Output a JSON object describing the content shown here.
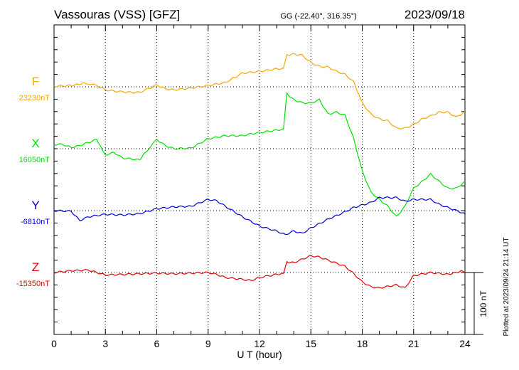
{
  "header": {
    "station": "Vassouras (VSS)  [GFZ]",
    "coords": "GG (-22.40°, 316.35°)",
    "date": "2023/09/18"
  },
  "footer": {
    "plotted": "Plotted at 2023/09/24 21:14 UT",
    "scale_label": "100 nT"
  },
  "chart_data": {
    "type": "line",
    "title": "Vassouras (VSS)  [GFZ]",
    "xlabel": "U T (hour)",
    "xlim": [
      0,
      24
    ],
    "xticks": [
      "0",
      "3",
      "6",
      "9",
      "12",
      "15",
      "18",
      "21",
      "24"
    ],
    "xtick_values": [
      0,
      3,
      6,
      9,
      12,
      15,
      18,
      21,
      24
    ],
    "scale_nT": 100,
    "grid": true,
    "series": [
      {
        "name": "F",
        "baseline_label": "23230nT",
        "color": "#f5a800",
        "x": [
          0,
          1,
          1.8,
          2.5,
          3,
          3.5,
          4.5,
          5,
          5.5,
          6,
          6.5,
          7,
          8,
          9,
          10,
          11,
          12,
          13,
          13.4,
          13.6,
          14,
          14.5,
          15,
          15.5,
          16,
          16.5,
          17,
          17.5,
          18,
          18.5,
          19,
          19.5,
          20,
          20.5,
          21,
          21.5,
          22,
          22.5,
          23,
          23.5,
          24
        ],
        "y": [
          1,
          2,
          6,
          2,
          -5,
          -7,
          -9,
          -9,
          -3,
          3,
          -3,
          -5,
          -2,
          2,
          7,
          22,
          25,
          29,
          29,
          51,
          53,
          51,
          39,
          33,
          32,
          25,
          20,
          8,
          -26,
          -44,
          -52,
          -55,
          -67,
          -67,
          -61,
          -52,
          -47,
          -41,
          -41,
          -49,
          -40
        ]
      },
      {
        "name": "X",
        "baseline_label": "16050nT",
        "color": "#00e000",
        "x": [
          0,
          0.5,
          1,
          1.5,
          2,
          2.5,
          2.8,
          3,
          3.5,
          4,
          5,
          5.3,
          6,
          6.5,
          7,
          8,
          9,
          10,
          11,
          11.5,
          12,
          13,
          13.4,
          13.6,
          14,
          14.5,
          15,
          15.5,
          16,
          16.5,
          17,
          17.5,
          18,
          18.5,
          19,
          19.5,
          20,
          20.5,
          21,
          21.5,
          22,
          22.5,
          23,
          23.5,
          24
        ],
        "y": [
          7,
          7,
          2,
          5,
          10,
          15,
          -1,
          -10,
          -6,
          -15,
          -18,
          -7,
          15,
          5,
          0,
          1,
          16,
          21,
          21,
          24,
          26,
          30,
          31,
          89,
          79,
          74,
          74,
          79,
          56,
          59,
          54,
          16,
          -36,
          -70,
          -82,
          -93,
          -110,
          -93,
          -64,
          -53,
          -41,
          -53,
          -64,
          -64,
          -53
        ]
      },
      {
        "name": "Y",
        "baseline_label": "-6810nT",
        "color": "#0000e0",
        "x": [
          0,
          1,
          1.5,
          2,
          3,
          4,
          5,
          6,
          7,
          8,
          9,
          9.5,
          10,
          11,
          12,
          13,
          13.5,
          14,
          14.5,
          15,
          16,
          17,
          17.5,
          18,
          18.5,
          19,
          20,
          20.5,
          21,
          22,
          22.5,
          23,
          24
        ],
        "y": [
          0,
          -1,
          -16,
          -10,
          -6,
          -7,
          -5,
          3,
          6,
          7,
          18,
          16,
          7,
          -10,
          -25,
          -33,
          -39,
          -33,
          -37,
          -28,
          -14,
          -2,
          5,
          9,
          13,
          21,
          21,
          15,
          18,
          18,
          10,
          5,
          -5
        ]
      },
      {
        "name": "Z",
        "baseline_label": "-15350nT",
        "color": "#e00000",
        "x": [
          0,
          1,
          2,
          2.5,
          3,
          4,
          5,
          6,
          7,
          8,
          9,
          9.5,
          10,
          11,
          11.5,
          12,
          13,
          13.4,
          13.6,
          14,
          15,
          15.5,
          16,
          17,
          17.5,
          18,
          18.5,
          19,
          20,
          20.5,
          21,
          22,
          23,
          23.8,
          24
        ],
        "y": [
          0,
          3,
          4,
          0,
          -4,
          -3,
          -2,
          -1,
          -2,
          -1,
          0,
          -3,
          -8,
          -11,
          -13,
          -8,
          -3,
          -2,
          17,
          16,
          27,
          25,
          20,
          10,
          -2,
          -15,
          -23,
          -25,
          -20,
          -25,
          -5,
          0,
          -3,
          2,
          -1
        ]
      }
    ]
  }
}
